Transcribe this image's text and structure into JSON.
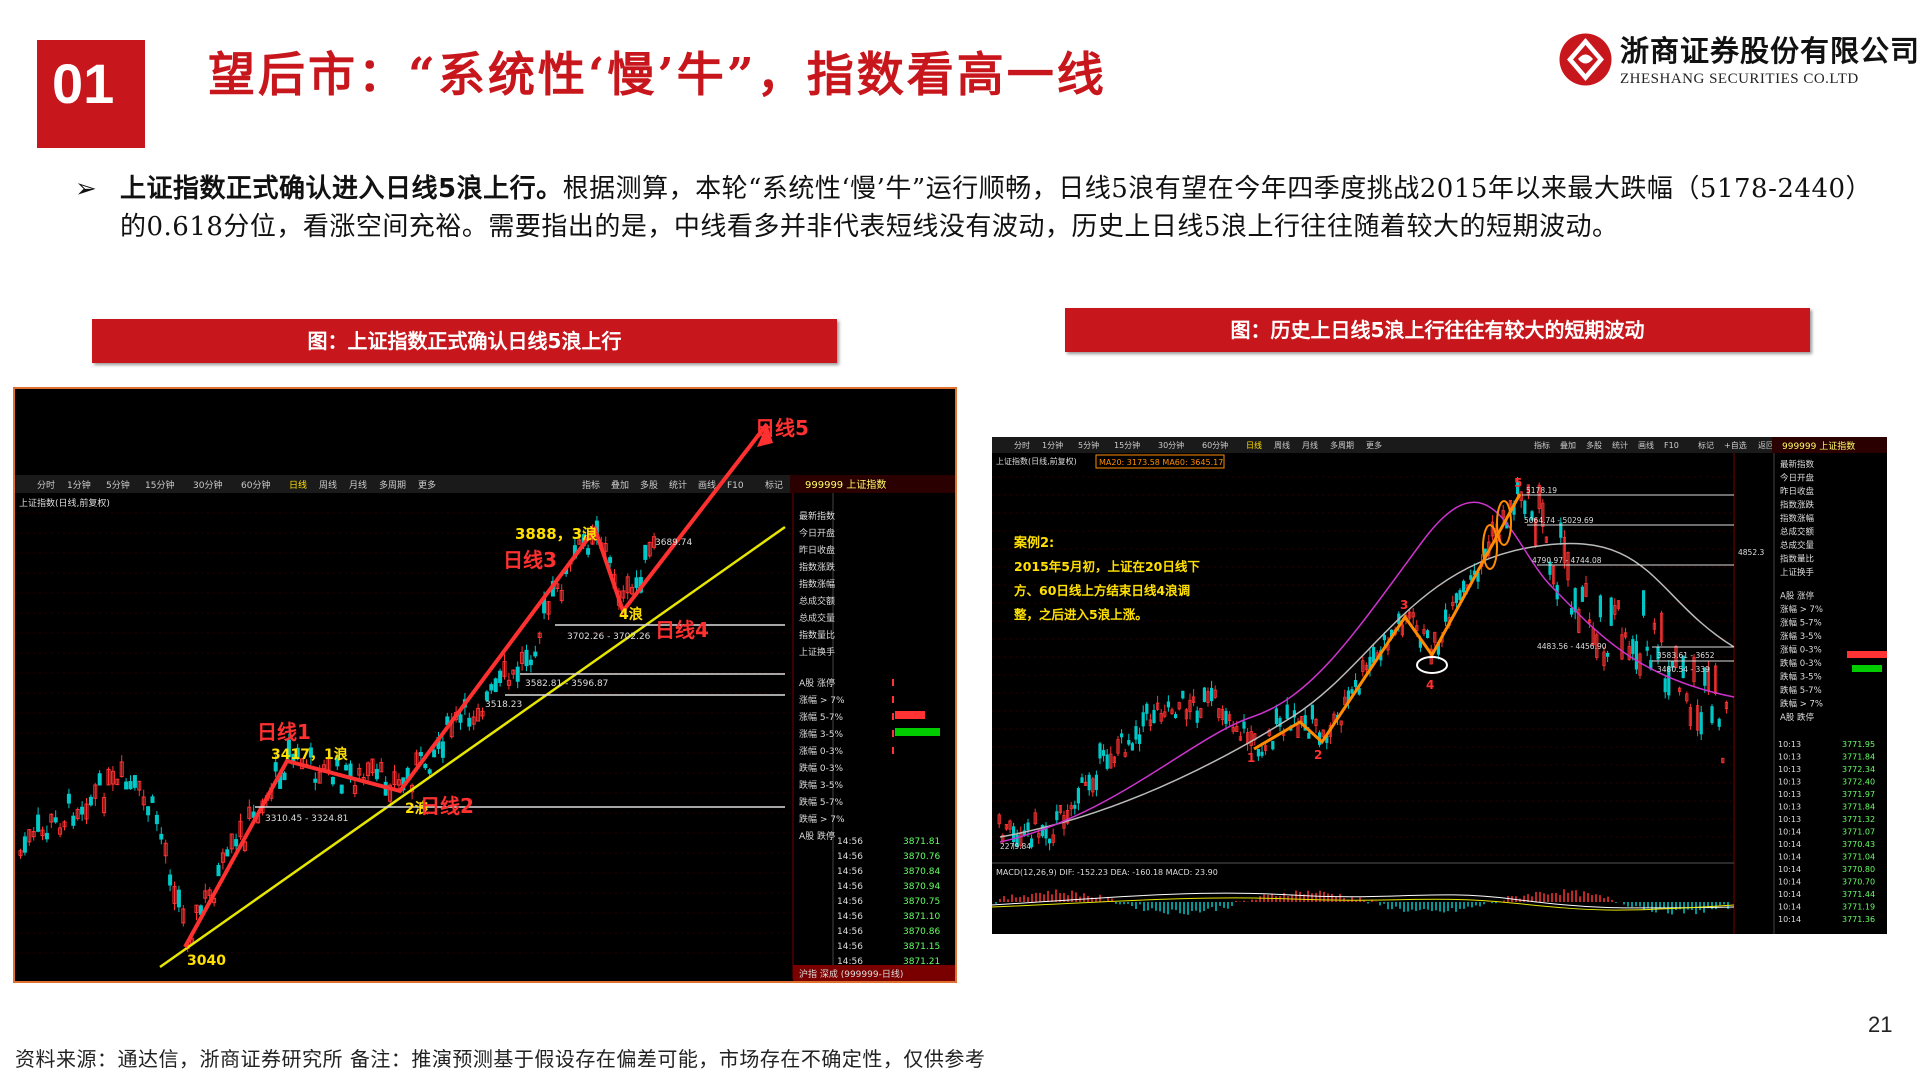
{
  "header": {
    "section_number": "01",
    "title": "望后市：“系统性‘慢’牛”，指数看高一线"
  },
  "logo": {
    "name_cn": "浙商证券股份有限公司",
    "name_en": "ZHESHANG SECURITIES CO.LTD"
  },
  "body": {
    "bullet": "➢",
    "lead": "上证指数正式确认进入日线5浪上行。",
    "text": "根据测算，本轮“系统性‘慢’牛”运行顺畅，日线5浪有望在今年四季度挑战2015年以来最大跌幅（5178-2440）的0.618分位，看涨空间充裕。需要指出的是，中线看多并非代表短线没有波动，历史上日线5浪上行往往随着较大的短期波动。"
  },
  "figures": {
    "left": {
      "caption": "图：上证指数正式确认日线5浪上行",
      "toolbar": [
        "分时",
        "1分钟",
        "5分钟",
        "15分钟",
        "30分钟",
        "60分钟",
        "日线",
        "周线",
        "月线",
        "多周期",
        "更多"
      ],
      "toolbar_right": [
        "指标",
        "叠加",
        "多股",
        "统计",
        "画线",
        "F10",
        "标记",
        "+自选",
        "返回"
      ],
      "index_title": "上证指数(日线,前复权)",
      "stock_code": "999999 上证指数",
      "side_labels": [
        "最新指数",
        "今日开盘",
        "昨日收盘",
        "指数涨跌",
        "指数涨幅",
        "总成交额",
        "总成交量",
        "指数量比",
        "上证换手",
        "A股 涨停",
        "涨幅 > 7%",
        "涨幅 5-7%",
        "涨幅 3-5%",
        "涨幅 0-3%",
        "跌幅 0-3%",
        "跌幅 3-5%",
        "跌幅 5-7%",
        "跌幅 > 7%",
        "A股 跌停"
      ],
      "tick_times": [
        "14:56",
        "14:56",
        "14:56",
        "14:56",
        "14:56",
        "14:56",
        "14:56",
        "14:56",
        "14:56"
      ],
      "tick_prices": [
        "3871.81",
        "3870.76",
        "3870.84",
        "3870.94",
        "3870.75",
        "3871.10",
        "3870.86",
        "3871.15",
        "3871.21"
      ],
      "annotations": {
        "wave5": "日线5",
        "wave3": "日线3",
        "wave3_val": "3888，3浪",
        "wave4": "日线4",
        "wave4_num": "4浪",
        "wave1": "日线1",
        "wave1_val": "3417，1浪",
        "wave2": "日线2",
        "wave2_num": "2浪",
        "start": "3040",
        "range1": "3310.45 - 3324.81",
        "range2": "3582.81 - 3596.87",
        "range3": "3702.26 - 3702.26",
        "range4": "3689.74",
        "range5": "3518.23",
        "bottom_tab": "沪指 深成 (999999-日线)"
      }
    },
    "right": {
      "caption": "图：历史上日线5浪上行往往有较大的短期波动",
      "toolbar": [
        "分时",
        "1分钟",
        "5分钟",
        "15分钟",
        "30分钟",
        "60分钟",
        "日线",
        "周线",
        "月线",
        "多周期",
        "更多"
      ],
      "toolbar_right": [
        "指标",
        "叠加",
        "多股",
        "统计",
        "画线",
        "F10",
        "标记",
        "+自选",
        "返回"
      ],
      "index_title": "上证指数(日线,前复权)",
      "ma_legend": "MA20: 3173.58  MA60: 3645.17",
      "stock_code": "999999 上证指数",
      "case_title": "案例2:",
      "case_lines": [
        "2015年5月初，上证在20日线下",
        "方、60日线上方结束日线4浪调",
        "整，之后进入5浪上涨。"
      ],
      "wave_nums": [
        "1",
        "2",
        "3",
        "4",
        "5"
      ],
      "price_labels": [
        "5178.19",
        "5064.74 - 5029.69",
        "4790.97 - 4744.08",
        "4483.56 - 4456.90",
        "3583.61 - 3652",
        "3480.54 - 339",
        "2279.84",
        "4852.3"
      ],
      "macd_label": "MACD(12,26,9)  DIF: -152.23  DEA: -160.18  MACD: 23.90",
      "side_labels": [
        "最新指数",
        "今日开盘",
        "昨日收盘",
        "指数涨跌",
        "指数涨幅",
        "总成交额",
        "总成交量",
        "指数量比",
        "上证换手",
        "A股 涨停",
        "涨幅 > 7%",
        "涨幅 5-7%",
        "涨幅 3-5%",
        "涨幅 0-3%",
        "跌幅 0-3%",
        "跌幅 3-5%",
        "跌幅 5-7%",
        "跌幅 > 7%",
        "A股 跌停"
      ],
      "tick_times": [
        "10:13",
        "10:13",
        "10:13",
        "10:13",
        "10:13",
        "10:13",
        "10:13",
        "10:14",
        "10:14",
        "10:14",
        "10:14",
        "10:14",
        "10:14",
        "10:14",
        "10:14"
      ],
      "tick_prices": [
        "3771.95",
        "3771.84",
        "3772.34",
        "3772.40",
        "3771.97",
        "3771.84",
        "3771.32",
        "3771.07",
        "3770.43",
        "3771.04",
        "3770.80",
        "3770.70",
        "3771.44",
        "3771.19",
        "3771.36"
      ]
    }
  },
  "footer": {
    "source": "资料来源：通达信，浙商证券研究所  备注：推演预测基于假设存在偏差可能，市场存在不确定性，仅供参考",
    "page": "21"
  },
  "colors": {
    "brand_red": "#c8161d",
    "candle_up": "#ff3333",
    "candle_down": "#00c8c8",
    "wave_line": "#ff3030",
    "trend_line": "#e6e600",
    "wave_orange": "#ff8c00"
  }
}
